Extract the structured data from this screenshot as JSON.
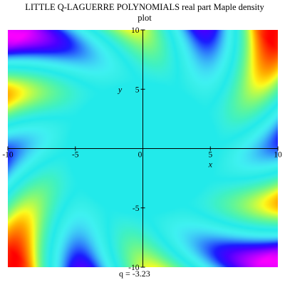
{
  "chart_data": {
    "type": "heatmap",
    "title_line1": "LITTLE Q-LAGUERRE  POLYNOMIALS  real  part  Maple density",
    "title_line2": "plot",
    "xlabel": "x",
    "ylabel": "y",
    "xlim": [
      -10,
      10
    ],
    "ylim": [
      -10,
      10
    ],
    "x_ticks": [
      {
        "value": -10,
        "label": "-10"
      },
      {
        "value": -5,
        "label": "-5"
      },
      {
        "value": 0,
        "label": "0"
      },
      {
        "value": 5,
        "label": "5"
      },
      {
        "value": 10,
        "label": "10"
      }
    ],
    "y_ticks": [
      {
        "value": 10,
        "label": "10"
      },
      {
        "value": 5,
        "label": "5"
      },
      {
        "value": -5,
        "label": "-5"
      },
      {
        "value": -10,
        "label": "-10"
      }
    ],
    "colormap": "hue (red-yellow-green-cyan-blue-magenta)",
    "background_value_color": "#22eaea",
    "caption": "q =   -3.23"
  }
}
